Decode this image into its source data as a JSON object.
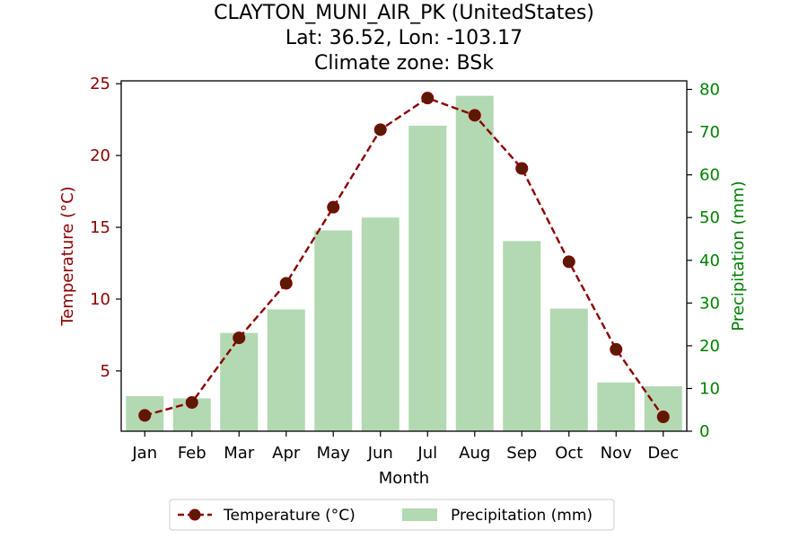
{
  "chart_data": {
    "type": "bar+line",
    "title_lines": [
      "CLAYTON_MUNI_AIR_PK (UnitedStates)",
      "Lat: 36.52, Lon: -103.17",
      "Climate zone: BSk"
    ],
    "xlabel": "Month",
    "categories": [
      "Jan",
      "Feb",
      "Mar",
      "Apr",
      "May",
      "Jun",
      "Jul",
      "Aug",
      "Sep",
      "Oct",
      "Nov",
      "Dec"
    ],
    "left_axis": {
      "label": "Temperature (°C)",
      "color": "#8b0000",
      "ylim": [
        0.8,
        25.2
      ],
      "ticks": [
        5,
        10,
        15,
        20,
        25
      ]
    },
    "right_axis": {
      "label": "Precipitation (mm)",
      "color": "#008000",
      "ylim": [
        0,
        82
      ],
      "ticks": [
        0,
        10,
        20,
        30,
        40,
        50,
        60,
        70,
        80
      ]
    },
    "series": [
      {
        "name": "Temperature (°C)",
        "type": "line",
        "axis": "left",
        "color": "#8b0000",
        "marker_color": "#5c1a00",
        "style": "dashed",
        "values": [
          1.9,
          2.8,
          7.3,
          11.1,
          16.4,
          21.8,
          24.0,
          22.8,
          19.1,
          12.6,
          6.5,
          1.8
        ]
      },
      {
        "name": "Precipitation (mm)",
        "type": "bar",
        "axis": "right",
        "color": "#b2d9b2",
        "values": [
          8.2,
          7.7,
          23.0,
          28.5,
          47.0,
          50.0,
          71.5,
          78.5,
          44.5,
          28.7,
          11.4,
          10.5
        ]
      }
    ],
    "legend": {
      "placement": "bottom-center",
      "entries": [
        "Temperature (°C)",
        "Precipitation (mm)"
      ]
    }
  }
}
